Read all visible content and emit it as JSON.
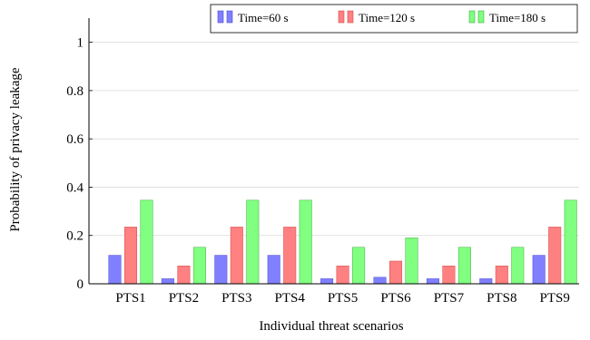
{
  "chart_data": {
    "type": "bar",
    "title": "",
    "xlabel": "Individual threat scenarios",
    "ylabel": "Probability of privacy leakage",
    "categories": [
      "PTS1",
      "PTS2",
      "PTS3",
      "PTS4",
      "PTS5",
      "PTS6",
      "PTS7",
      "PTS8",
      "PTS9"
    ],
    "series": [
      {
        "name": "Time=60 s",
        "color": "#8080ff",
        "stroke": "#4a4ad0",
        "values": [
          0.118,
          0.021,
          0.118,
          0.118,
          0.021,
          0.027,
          0.021,
          0.021,
          0.118
        ]
      },
      {
        "name": "Time=120 s",
        "color": "#ff8080",
        "stroke": "#d04a4a",
        "values": [
          0.235,
          0.074,
          0.235,
          0.235,
          0.074,
          0.094,
          0.074,
          0.074,
          0.235
        ]
      },
      {
        "name": "Time=180 s",
        "color": "#80ff80",
        "stroke": "#3fae3f",
        "values": [
          0.346,
          0.151,
          0.346,
          0.346,
          0.151,
          0.19,
          0.151,
          0.151,
          0.346
        ]
      }
    ],
    "ylim": [
      0,
      1.1
    ],
    "yticks": [
      0,
      0.2,
      0.4,
      0.6,
      0.8,
      1
    ],
    "ytick_labels": [
      "0",
      "0.2",
      "0.4",
      "0.6",
      "0.8",
      "1"
    ],
    "grid": true,
    "legend_position": "top-right"
  }
}
